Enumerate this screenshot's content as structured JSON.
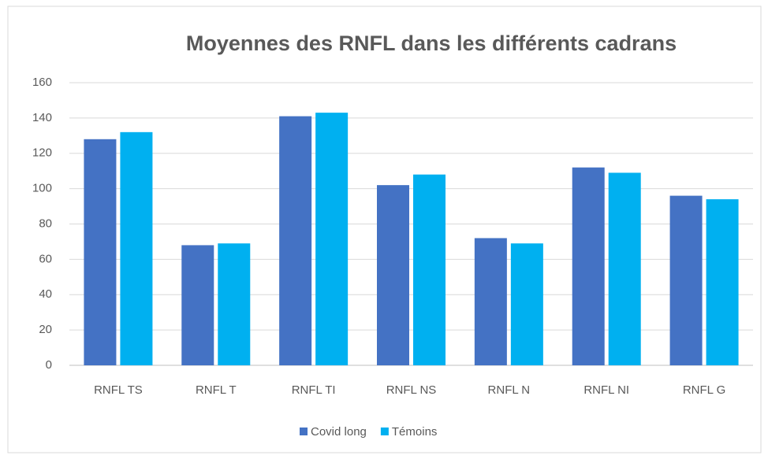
{
  "chart_data": {
    "type": "bar",
    "title": "Moyennes des RNFL dans les différents cadrans",
    "categories": [
      "RNFL TS",
      "RNFL T",
      "RNFL TI",
      "RNFL NS",
      "RNFL N",
      "RNFL NI",
      "RNFL G"
    ],
    "series": [
      {
        "name": "Covid long",
        "color": "#4472c4",
        "values": [
          128,
          68,
          141,
          102,
          72,
          112,
          96
        ]
      },
      {
        "name": "Témoins",
        "color": "#00b0f0",
        "values": [
          132,
          69,
          143,
          108,
          69,
          109,
          94
        ]
      }
    ],
    "ylim": [
      0,
      160
    ],
    "yticks": [
      0,
      20,
      40,
      60,
      80,
      100,
      120,
      140,
      160
    ],
    "grid": true,
    "legend": "bottom"
  }
}
